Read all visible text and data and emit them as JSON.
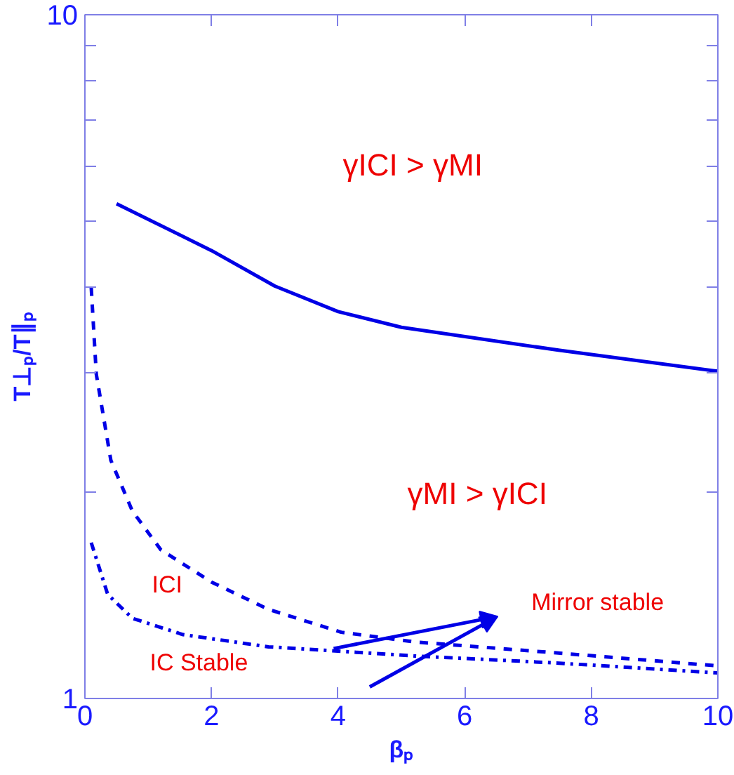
{
  "chart_data": {
    "type": "line",
    "xlabel": "βₚ",
    "ylabel": "T⊥ₚ/T∥ₚ",
    "log": "y",
    "xlim": [
      0,
      10
    ],
    "ylim": [
      1,
      10
    ],
    "xticks": [
      0,
      2,
      4,
      6,
      8,
      10
    ],
    "yticks": [
      1,
      {
        "value": 2,
        "label": null
      },
      {
        "value": 3,
        "label": null
      },
      {
        "value": 4,
        "label": null
      },
      {
        "value": 5,
        "label": null
      },
      {
        "value": 6,
        "label": null
      },
      {
        "value": 7,
        "label": null
      },
      {
        "value": 8,
        "label": null
      },
      {
        "value": 9,
        "label": null
      },
      10
    ],
    "grid": false,
    "marker": "none",
    "series": [
      {
        "color": "#0000e6",
        "line_style": "solid",
        "x": [
          0.5,
          2,
          3,
          4,
          5,
          7.5,
          10
        ],
        "values": [
          5.29,
          4.52,
          4.01,
          3.68,
          3.49,
          3.23,
          3.01
        ]
      },
      {
        "color": "#0000e6",
        "line_style": "dashed",
        "x": [
          0.1,
          0.18,
          0.41,
          0.75,
          1.2,
          2,
          2.9,
          4.05,
          5.2,
          7.45,
          10
        ],
        "values": [
          3.99,
          2.98,
          2.23,
          1.88,
          1.65,
          1.48,
          1.35,
          1.25,
          1.21,
          1.166,
          1.116
        ]
      },
      {
        "color": "#0000e6",
        "line_style": "dashdot",
        "x": [
          0.1,
          0.36,
          0.75,
          1.55,
          2.9,
          5.2,
          7.45,
          10
        ],
        "values": [
          1.69,
          1.42,
          1.31,
          1.24,
          1.19,
          1.154,
          1.127,
          1.09
        ]
      }
    ],
    "annotations": [
      "γICI > γMI",
      "γMI > γICI",
      "ICI",
      "IC Stable",
      "Mirror stable"
    ]
  }
}
